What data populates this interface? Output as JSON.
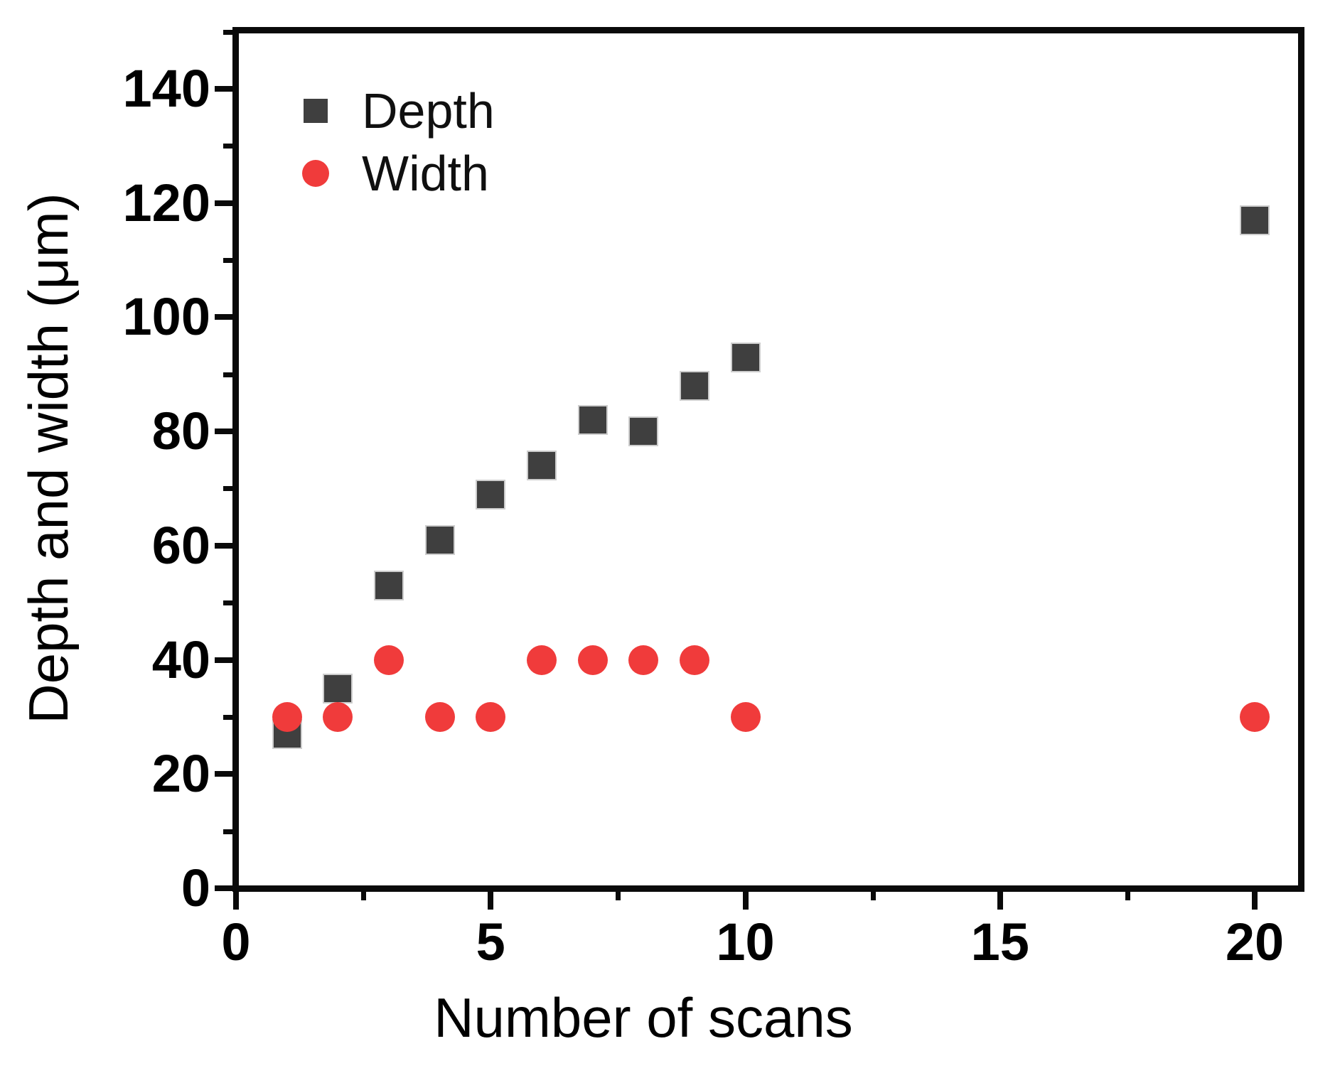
{
  "figure": {
    "background": "#ffffff"
  },
  "colors": {
    "depth_marker": "#3f3f3f",
    "width_marker": "#f03b3b",
    "axis": "#0a0a0a",
    "text": "#000000"
  },
  "legend": {
    "items": [
      {
        "label": "Depth",
        "marker": "square",
        "color": "#3f3f3f"
      },
      {
        "label": "Width",
        "marker": "circle",
        "color": "#f03b3b"
      }
    ]
  },
  "chart_data": {
    "type": "scatter",
    "title": "",
    "xlabel": "Number of scans",
    "ylabel": "Depth and width (μm)",
    "xlim": [
      0,
      20.9
    ],
    "ylim": [
      0,
      150
    ],
    "grid": false,
    "legend_position": "top-left-inside",
    "x_major_ticks": [
      0,
      5,
      10,
      15,
      20
    ],
    "x_minor_ticks": [
      2.5,
      7.5,
      12.5,
      17.5
    ],
    "y_major_ticks": [
      0,
      20,
      40,
      60,
      80,
      100,
      120,
      140
    ],
    "y_minor_ticks": [
      10,
      30,
      50,
      70,
      90,
      110,
      130,
      150
    ],
    "x_tick_labels": [
      "0",
      "5",
      "10",
      "15",
      "20"
    ],
    "y_tick_labels": [
      "0",
      "20",
      "40",
      "60",
      "80",
      "100",
      "120",
      "140"
    ],
    "x": [
      1,
      2,
      3,
      4,
      5,
      6,
      7,
      8,
      9,
      10,
      20
    ],
    "series": [
      {
        "name": "Depth",
        "marker": "square",
        "color": "#3f3f3f",
        "values": [
          27,
          35,
          53,
          61,
          69,
          74,
          82,
          80,
          88,
          93,
          117
        ]
      },
      {
        "name": "Width",
        "marker": "circle",
        "color": "#f03b3b",
        "values": [
          30,
          30,
          40,
          30,
          30,
          40,
          40,
          40,
          40,
          30,
          30
        ]
      }
    ]
  }
}
